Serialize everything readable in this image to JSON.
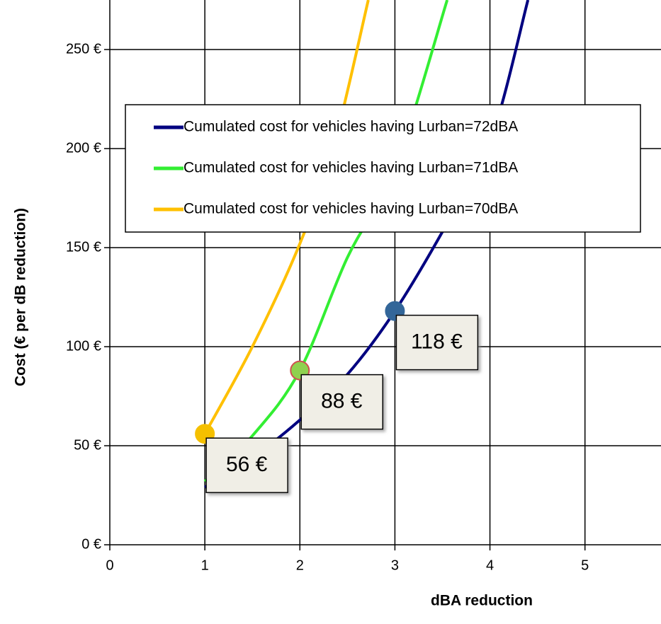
{
  "chart_data": {
    "type": "line",
    "x_label": "dBA reduction",
    "y_label": "Cost (€ per dB reduction)",
    "xlim": [
      0,
      5.8
    ],
    "ylim": [
      0,
      275
    ],
    "xticks": [
      0,
      1,
      2,
      3,
      4,
      5
    ],
    "yticks": [
      {
        "value": 0,
        "label": "0 €"
      },
      {
        "value": 50,
        "label": "50 €"
      },
      {
        "value": 100,
        "label": "100 €"
      },
      {
        "value": 150,
        "label": "150 €"
      },
      {
        "value": 200,
        "label": "200 €"
      },
      {
        "value": 250,
        "label": "250 €"
      }
    ],
    "grid": true,
    "legend": "top",
    "series": [
      {
        "name": "Cumulated cost for vehicles having Lurban=72dBA",
        "color": "#000080",
        "x": [
          1,
          1.5,
          2,
          2.5,
          3,
          3.5,
          4,
          4.4
        ],
        "values": [
          29,
          44,
          63,
          86,
          118,
          158,
          203,
          275
        ]
      },
      {
        "name": "Cumulated cost for vehicles having Lurban=71dBA",
        "color": "#33ee33",
        "x": [
          1,
          1.5,
          2,
          2.5,
          3,
          3.55
        ],
        "values": [
          32,
          55,
          88,
          145,
          190,
          275
        ]
      },
      {
        "name": "Cumulated cost for vehicles having Lurban=70dBA",
        "color": "#ffc000",
        "x": [
          1,
          1.5,
          2,
          2.35,
          2.72
        ],
        "values": [
          56,
          100,
          152,
          200,
          275
        ]
      }
    ],
    "annotations": [
      {
        "text": "56 €",
        "x": 1,
        "y": 56,
        "color": "#f5c000"
      },
      {
        "text": "88 €",
        "x": 2,
        "y": 88,
        "color": "#8fd14f"
      },
      {
        "text": "118 €",
        "x": 3,
        "y": 118,
        "color": "#336699"
      }
    ]
  }
}
